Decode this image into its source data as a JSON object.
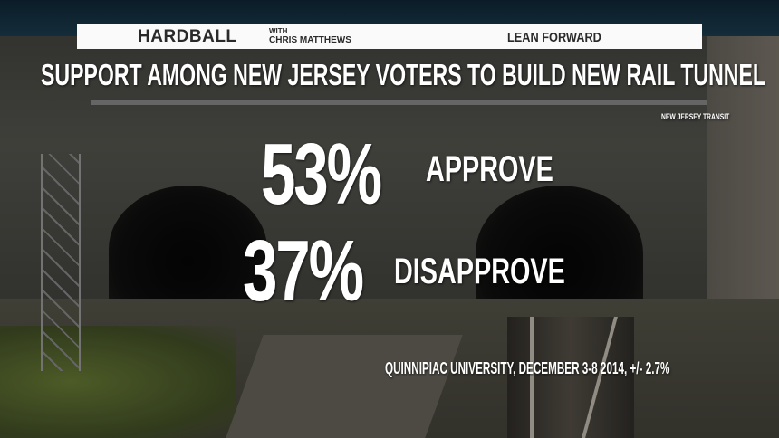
{
  "banner": {
    "show": "HARDBALL",
    "with": "WITH",
    "host": "CHRIS MATTHEWS",
    "slogan": "LEAN FORWARD"
  },
  "graphic": {
    "title": "SUPPORT AMONG NEW JERSEY VOTERS TO BUILD NEW RAIL TUNNEL",
    "photo_credit": "NEW JERSEY TRANSIT",
    "results": [
      {
        "value": "53%",
        "label": "APPROVE"
      },
      {
        "value": "37%",
        "label": "DISAPPROVE"
      }
    ],
    "source": "QUINNIPIAC UNIVERSITY, DECEMBER 3-8 2014, +/- 2.7%"
  },
  "colors": {
    "text": "#ffffff",
    "banner": "#fafafa"
  }
}
